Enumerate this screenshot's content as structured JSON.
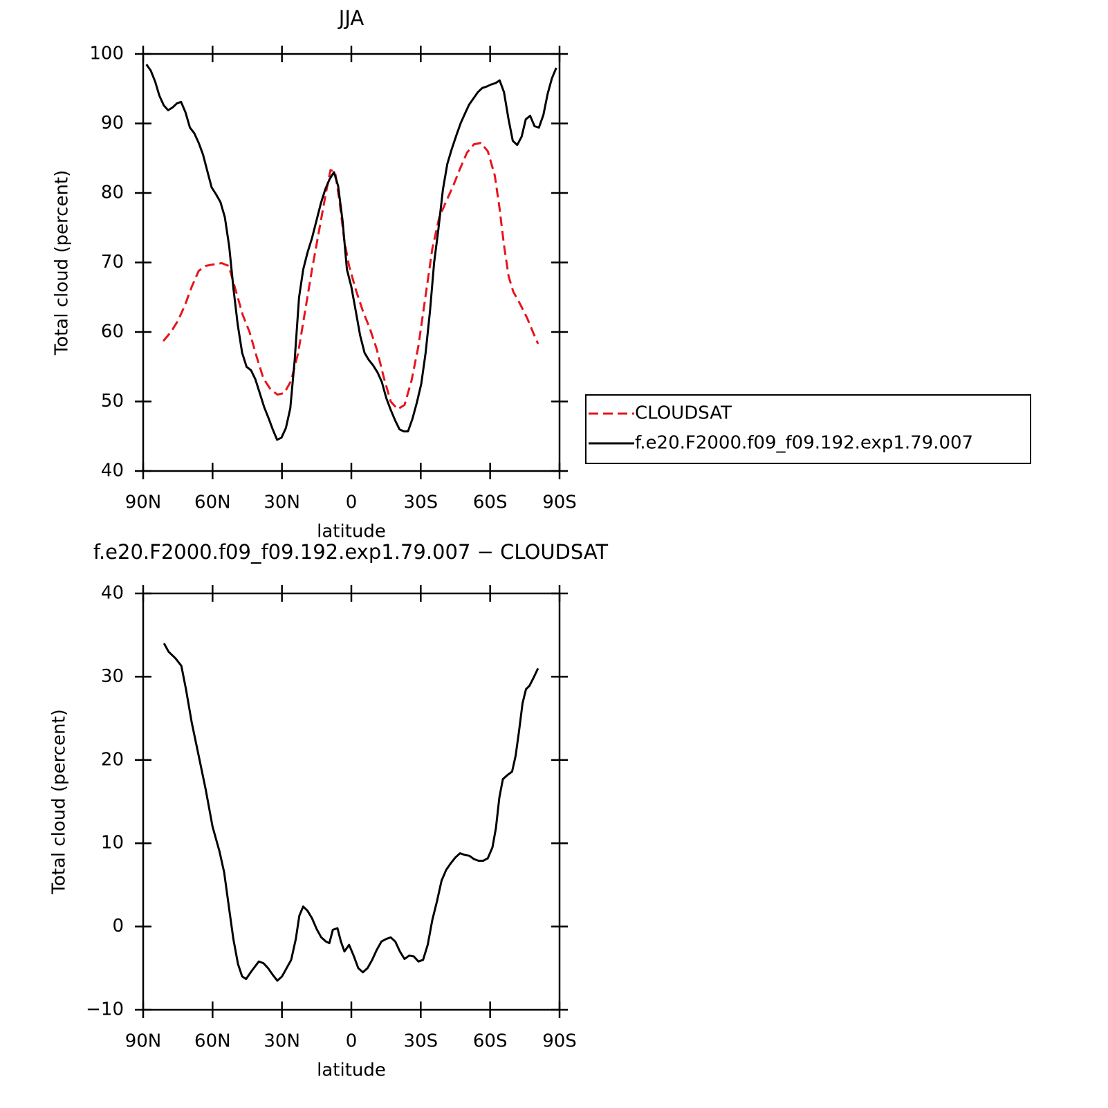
{
  "chart_data": [
    {
      "type": "line",
      "title": "JJA",
      "xlabel": "latitude",
      "ylabel": "Total cloud (percent)",
      "xlim": [
        90,
        -90
      ],
      "xticks": [
        {
          "value": 90,
          "label": "90N"
        },
        {
          "value": 60,
          "label": "60N"
        },
        {
          "value": 30,
          "label": "30N"
        },
        0,
        {
          "value": -30,
          "label": "30S"
        },
        {
          "value": -60,
          "label": "60S"
        },
        {
          "value": -90,
          "label": "90S"
        }
      ],
      "ylim": [
        40,
        100
      ],
      "yticks": [
        40,
        50,
        60,
        70,
        80,
        90,
        100
      ],
      "legend": "right",
      "series": [
        {
          "name": "CLOUDSAT",
          "color": "#e8141c",
          "dashed": true,
          "x": [
            81.3,
            78,
            75,
            72,
            69,
            66,
            63,
            60,
            56,
            53,
            50,
            47,
            44,
            41,
            38,
            35,
            32,
            29,
            26,
            23,
            20,
            17,
            14,
            11,
            9,
            7,
            5,
            3,
            1,
            -2,
            -5,
            -8,
            -11,
            -14,
            -17,
            -20,
            -23,
            -26,
            -29,
            -32,
            -35,
            -38,
            -41,
            -44,
            -47,
            -50,
            -53,
            -56,
            -59,
            -62,
            -64,
            -66,
            -68,
            -70,
            -73,
            -76,
            -78.5,
            -80.7
          ],
          "values": [
            58.7,
            60.0,
            61.6,
            63.8,
            66.5,
            68.8,
            69.5,
            69.7,
            69.9,
            69.5,
            66.0,
            62.5,
            60.0,
            56.5,
            53.3,
            51.8,
            51.0,
            51.2,
            53.0,
            57.0,
            63.0,
            69.0,
            74.5,
            80.0,
            83.3,
            83.0,
            78.5,
            73.0,
            69.5,
            66.0,
            63.0,
            60.5,
            57.5,
            53.5,
            50.0,
            48.9,
            49.5,
            53.0,
            58.0,
            65.0,
            72.0,
            76.5,
            78.8,
            81.0,
            83.5,
            85.8,
            87.0,
            87.2,
            86.0,
            82.5,
            78.0,
            72.5,
            68.0,
            65.8,
            64.0,
            62.0,
            60.0,
            58.3
          ]
        },
        {
          "name": "f.e20.F2000.f09_f09.192.exp1.79.007",
          "color": "#000000",
          "dashed": false,
          "x": [
            88.6,
            86.7,
            84.8,
            83.0,
            81.1,
            79.2,
            77.3,
            75.4,
            73.6,
            71.7,
            69.8,
            67.9,
            66.0,
            64.1,
            62.3,
            60.4,
            58.5,
            56.6,
            54.7,
            52.8,
            50.9,
            49.1,
            47.2,
            45.3,
            43.4,
            41.5,
            39.6,
            37.7,
            35.8,
            34.0,
            32.1,
            30.2,
            28.3,
            26.4,
            24.5,
            22.6,
            20.8,
            18.9,
            17.0,
            15.1,
            13.2,
            11.3,
            9.4,
            7.5,
            5.7,
            3.8,
            1.9,
            0,
            -1.9,
            -3.8,
            -5.7,
            -7.5,
            -9.4,
            -11.3,
            -13.2,
            -15.1,
            -17.0,
            -18.9,
            -20.8,
            -22.6,
            -24.5,
            -26.4,
            -28.3,
            -30.2,
            -32.1,
            -34.0,
            -35.8,
            -37.7,
            -39.6,
            -41.5,
            -43.4,
            -45.3,
            -47.2,
            -49.1,
            -50.9,
            -52.8,
            -54.7,
            -56.6,
            -58.5,
            -60.4,
            -62.3,
            -64.1,
            -66.0,
            -67.9,
            -69.8,
            -71.7,
            -73.6,
            -75.4,
            -77.3,
            -79.2,
            -81.1,
            -83.0,
            -84.9,
            -86.7,
            -88.6
          ],
          "values": [
            98.5,
            97.6,
            96.0,
            94.0,
            92.6,
            91.9,
            92.3,
            92.9,
            93.1,
            91.6,
            89.4,
            88.6,
            87.2,
            85.5,
            83.2,
            80.8,
            79.8,
            78.7,
            76.5,
            72.3,
            66.0,
            61.0,
            57.0,
            55.0,
            54.5,
            53.2,
            51.2,
            49.2,
            47.6,
            46.0,
            44.5,
            44.8,
            46.2,
            49.0,
            56.0,
            65.0,
            69.0,
            71.5,
            73.5,
            76.0,
            78.5,
            80.5,
            82.0,
            83.0,
            81.0,
            76.0,
            69.0,
            66.5,
            63.0,
            59.5,
            57.0,
            56.0,
            55.2,
            54.2,
            52.8,
            50.5,
            48.8,
            47.3,
            46.0,
            45.7,
            45.7,
            47.5,
            49.8,
            52.5,
            57.0,
            63.0,
            70.0,
            75.0,
            80.5,
            84.2,
            86.3,
            88.2,
            90.0,
            91.4,
            92.7,
            93.6,
            94.5,
            95.1,
            95.3,
            95.6,
            95.8,
            96.2,
            94.5,
            90.7,
            87.5,
            86.9,
            88.1,
            90.6,
            91.1,
            89.6,
            89.4,
            91.2,
            94.3,
            96.5,
            98.0
          ]
        }
      ]
    },
    {
      "type": "line",
      "title": "f.e20.F2000.f09_f09.192.exp1.79.007 − CLOUDSAT",
      "xlabel": "latitude",
      "ylabel": "Total cloud (percent)",
      "xlim": [
        90,
        -90
      ],
      "xticks": [
        {
          "value": 90,
          "label": "90N"
        },
        {
          "value": 60,
          "label": "60N"
        },
        {
          "value": 30,
          "label": "30N"
        },
        0,
        {
          "value": -30,
          "label": "30S"
        },
        {
          "value": -60,
          "label": "60S"
        },
        {
          "value": -90,
          "label": "90S"
        }
      ],
      "ylim": [
        -10,
        40
      ],
      "yticks": [
        {
          "value": -10,
          "label": "−10"
        },
        0,
        10,
        20,
        30,
        40
      ],
      "series": [
        {
          "color": "#000000",
          "dashed": false,
          "x": [
            81.0,
            79,
            76,
            73.5,
            71.5,
            69,
            66,
            63,
            60,
            57,
            55,
            53,
            51,
            49,
            47.2,
            45.5,
            43,
            40,
            38,
            36,
            34,
            32,
            30,
            28,
            26,
            24,
            22.5,
            20.8,
            19,
            17,
            15,
            13,
            11,
            9.5,
            8,
            6,
            4.5,
            3,
            1,
            -1,
            -3,
            -5,
            -7,
            -9,
            -11,
            -13,
            -15,
            -17,
            -19,
            -21,
            -23,
            -25,
            -27,
            -29,
            -31,
            -33,
            -35,
            -37,
            -39,
            -41,
            -43,
            -45,
            -47,
            -49,
            -51,
            -53,
            -55,
            -57,
            -59,
            -61,
            -62.5,
            -64,
            -65.5,
            -67.5,
            -69.5,
            -71,
            -72.5,
            -74,
            -75.5,
            -77,
            -79,
            -80.7
          ],
          "values": [
            34.0,
            33.0,
            32.2,
            31.3,
            28.5,
            24.5,
            20.5,
            16.5,
            12.0,
            9.0,
            6.5,
            2.5,
            -1.5,
            -4.5,
            -6.0,
            -6.3,
            -5.3,
            -4.2,
            -4.4,
            -5.0,
            -5.8,
            -6.5,
            -6.0,
            -5.0,
            -4.0,
            -1.5,
            1.3,
            2.4,
            1.9,
            1.0,
            -0.3,
            -1.3,
            -1.8,
            -2.0,
            -0.4,
            -0.2,
            -1.8,
            -3.0,
            -2.2,
            -3.5,
            -5.0,
            -5.5,
            -5.0,
            -4.0,
            -2.8,
            -1.8,
            -1.5,
            -1.3,
            -1.8,
            -3.0,
            -3.9,
            -3.5,
            -3.6,
            -4.2,
            -4.0,
            -2.2,
            0.8,
            3.0,
            5.5,
            6.8,
            7.6,
            8.3,
            8.8,
            8.6,
            8.5,
            8.1,
            7.9,
            7.9,
            8.2,
            9.5,
            11.8,
            15.5,
            17.7,
            18.2,
            18.6,
            20.5,
            23.5,
            26.8,
            28.5,
            28.9,
            30.0,
            31.0
          ]
        }
      ]
    }
  ]
}
